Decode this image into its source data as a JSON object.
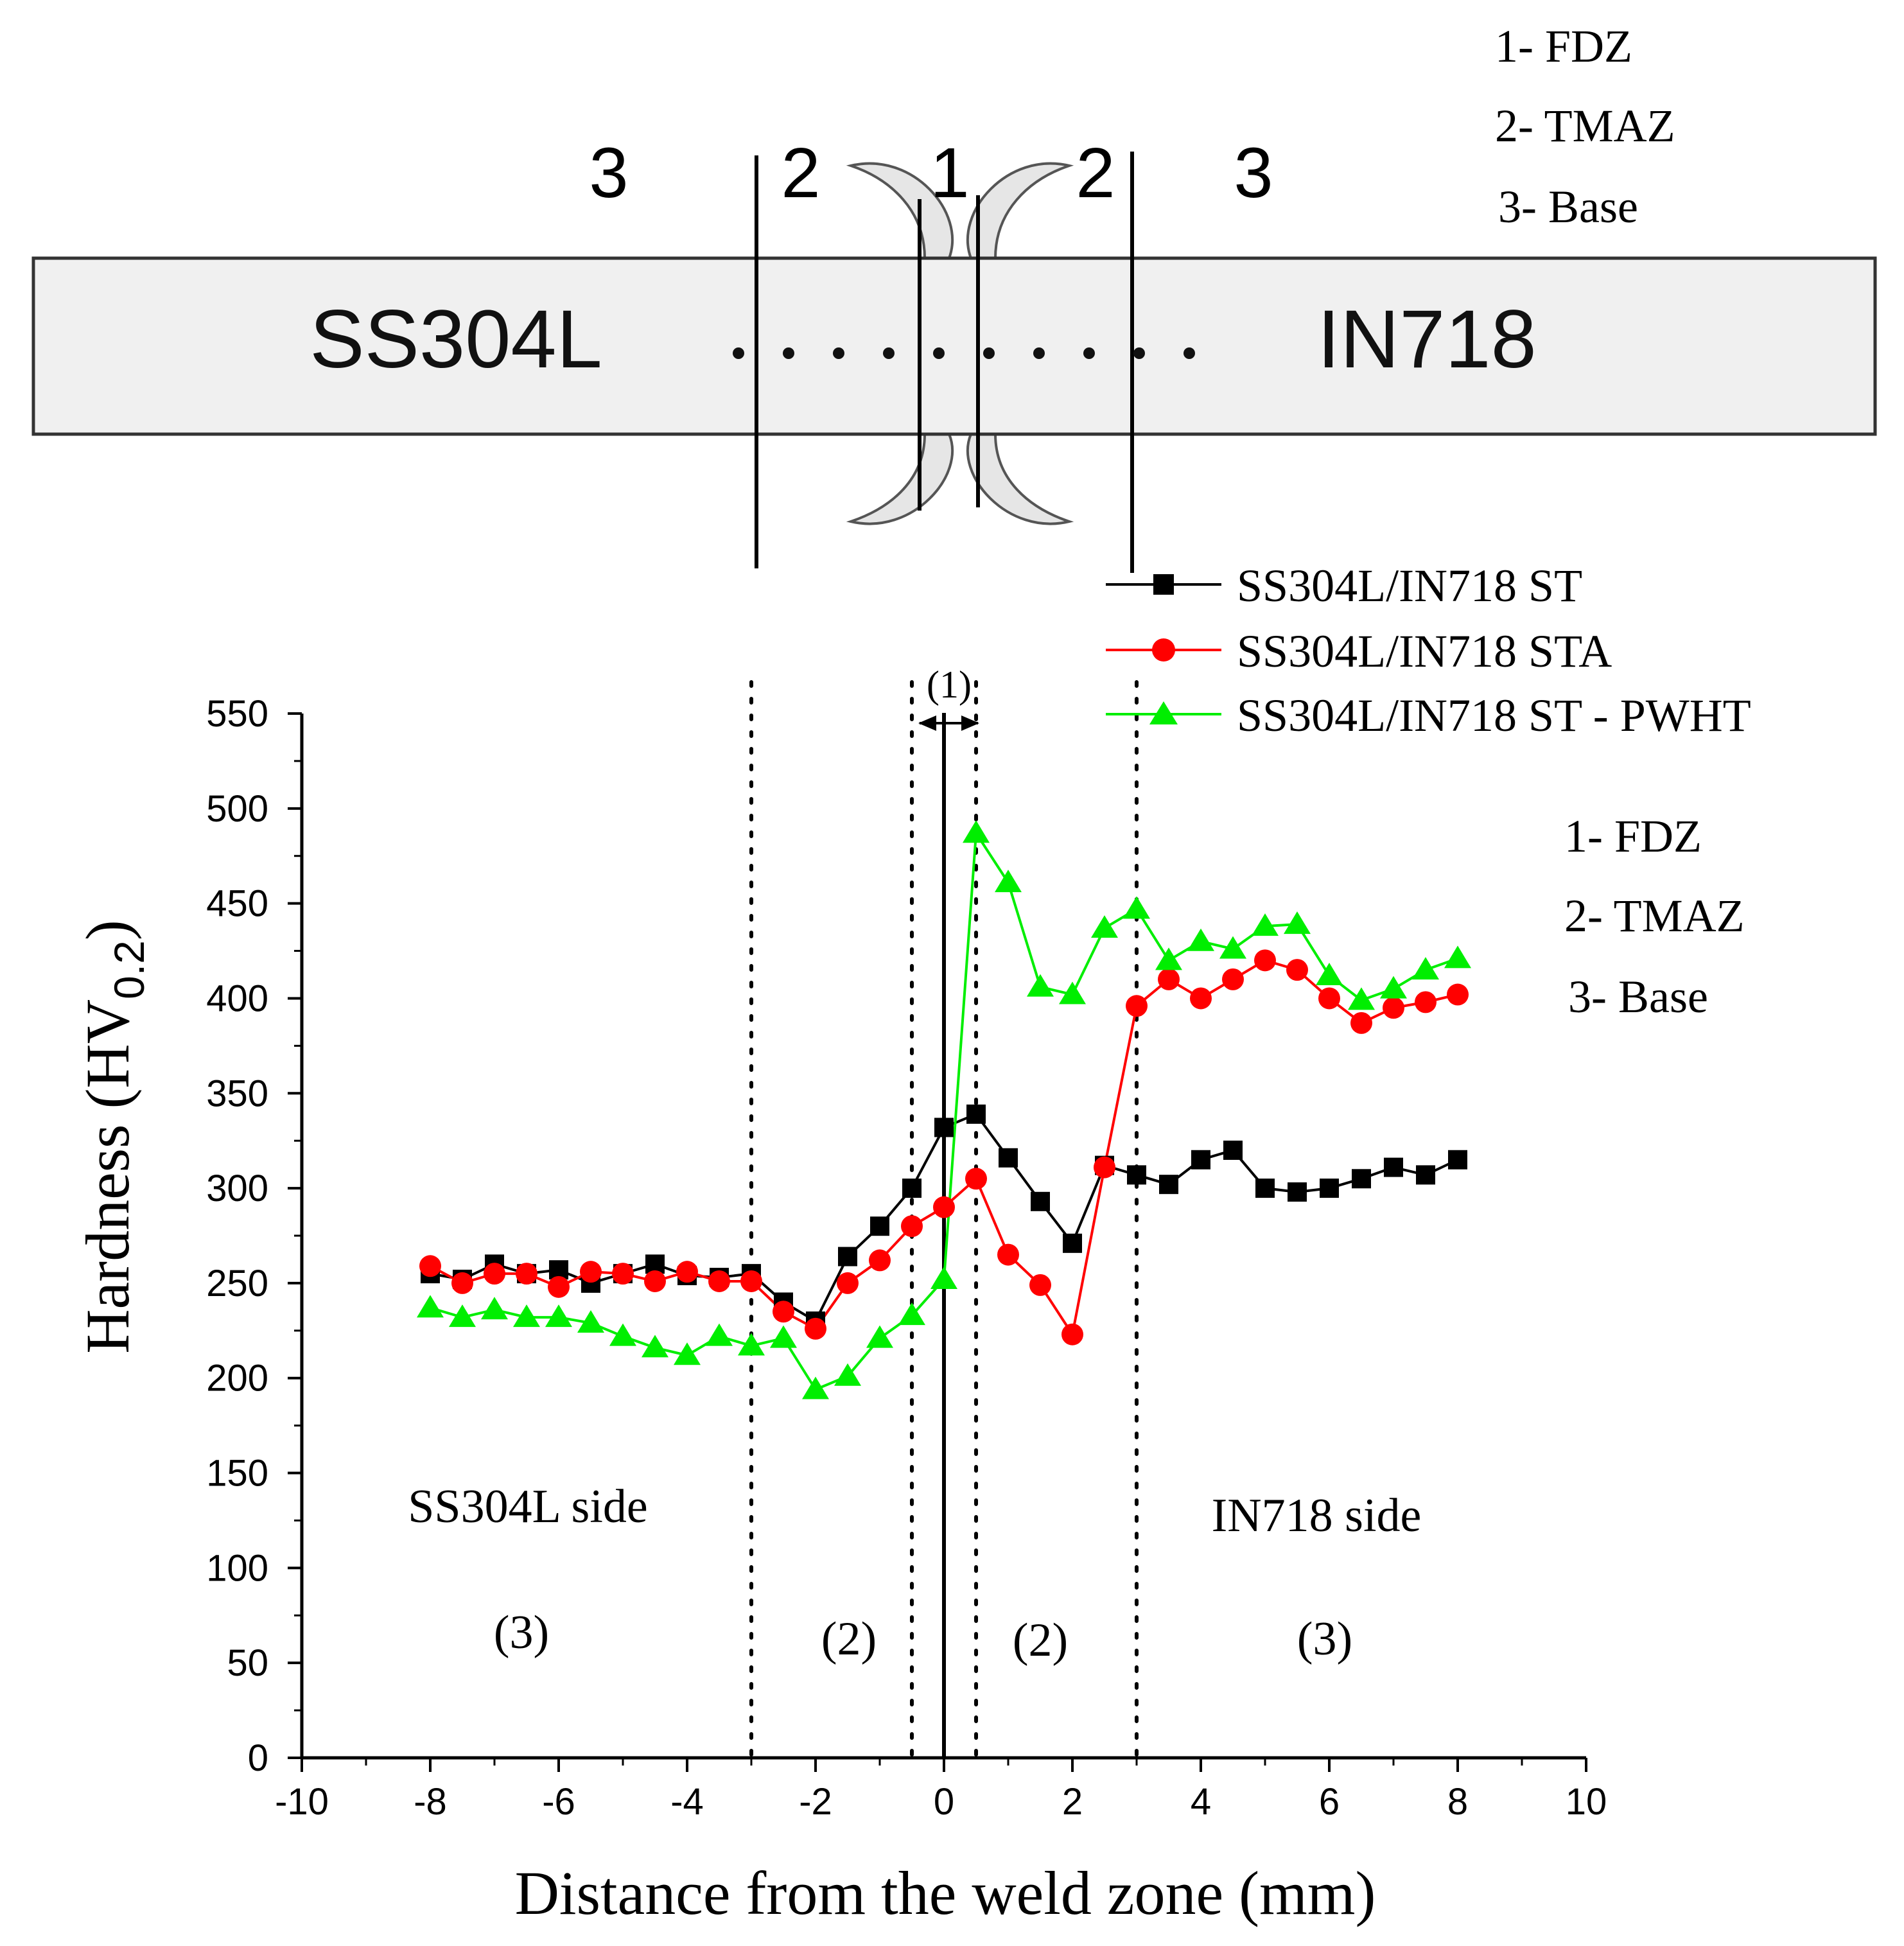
{
  "schematic": {
    "left_material": "SS304L",
    "right_material": "IN718",
    "zone_numbers": [
      "3",
      "2",
      "1",
      "2",
      "3"
    ],
    "legend": [
      "1- FDZ",
      "2- TMAZ",
      "3- Base"
    ]
  },
  "chart_legend": [
    "1- FDZ",
    "2- TMAZ",
    "3- Base"
  ],
  "region_labels": {
    "left_side": "SS304L side",
    "right_side": "IN718 side",
    "fdz": "(1)",
    "tmaz_left": "(2)",
    "tmaz_right": "(2)",
    "base_left": "(3)",
    "base_right": "(3)"
  },
  "chart_data": {
    "type": "line",
    "xlabel": "Distance from the weld zone (mm)",
    "ylabel_main": "Hardness (HV",
    "ylabel_sub": "0.2",
    "ylabel_close": ")",
    "xlim": [
      -10,
      10
    ],
    "ylim": [
      0,
      550
    ],
    "xticks": [
      -10,
      -8,
      -6,
      -4,
      -2,
      0,
      2,
      4,
      6,
      8,
      10
    ],
    "yticks": [
      0,
      50,
      100,
      150,
      200,
      250,
      300,
      350,
      400,
      450,
      500,
      550
    ],
    "vlines_dotted": [
      -3,
      -0.5,
      0.5,
      3
    ],
    "vline_solid": 0,
    "x": [
      -8,
      -7.5,
      -7,
      -6.5,
      -6,
      -5.5,
      -5,
      -4.5,
      -4,
      -3.5,
      -3,
      -2.5,
      -2,
      -1.5,
      -1,
      -0.5,
      0,
      0.5,
      1,
      1.5,
      2,
      2.5,
      3,
      3.5,
      4,
      4.5,
      5,
      5.5,
      6,
      6.5,
      7,
      7.5,
      8
    ],
    "series": [
      {
        "name": "SS304L/IN718 ST",
        "color": "#000000",
        "marker": "square",
        "values": [
          255,
          252,
          260,
          255,
          257,
          250,
          255,
          260,
          254,
          253,
          255,
          240,
          230,
          264,
          280,
          300,
          332,
          339,
          316,
          293,
          271,
          312,
          307,
          302,
          315,
          320,
          300,
          298,
          300,
          305,
          311,
          307,
          315
        ]
      },
      {
        "name": "SS304L/IN718 STA",
        "color": "#ff0000",
        "marker": "circle",
        "values": [
          259,
          250,
          255,
          255,
          248,
          256,
          255,
          251,
          256,
          251,
          251,
          235,
          226,
          250,
          262,
          280,
          290,
          305,
          265,
          249,
          223,
          311,
          396,
          410,
          400,
          410,
          420,
          415,
          400,
          387,
          395,
          398,
          402
        ]
      },
      {
        "name": "SS304L/IN718 ST - PWHT",
        "color": "#00ee00",
        "marker": "triangle",
        "values": [
          237,
          232,
          236,
          232,
          232,
          229,
          222,
          216,
          212,
          222,
          217,
          221,
          194,
          201,
          221,
          233,
          252,
          487,
          461,
          406,
          402,
          437,
          447,
          420,
          430,
          426,
          438,
          439,
          412,
          399,
          405,
          415,
          421
        ]
      }
    ]
  }
}
